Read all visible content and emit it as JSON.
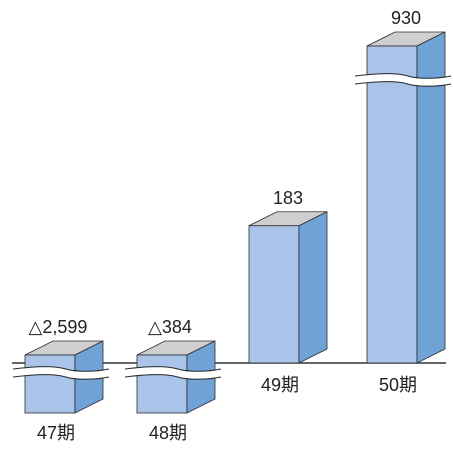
{
  "chart_data": {
    "type": "bar",
    "style": "3d-box",
    "categories": [
      "47期",
      "48期",
      "49期",
      "50期"
    ],
    "values": [
      -2599,
      -384,
      183,
      930
    ],
    "value_labels": [
      "△2,599",
      "△384",
      "183",
      "930"
    ],
    "axis_breaks": [
      "47期",
      "48期",
      "50期"
    ],
    "title": "",
    "xlabel": "",
    "ylabel": "",
    "grid": false,
    "legend": "none"
  },
  "colors": {
    "front": "#a9c4e8",
    "side": "#6fa3d8",
    "top": "#cfcfcf",
    "edge": "#2b2b2b",
    "baseline": "#333333",
    "text": "#222222"
  }
}
